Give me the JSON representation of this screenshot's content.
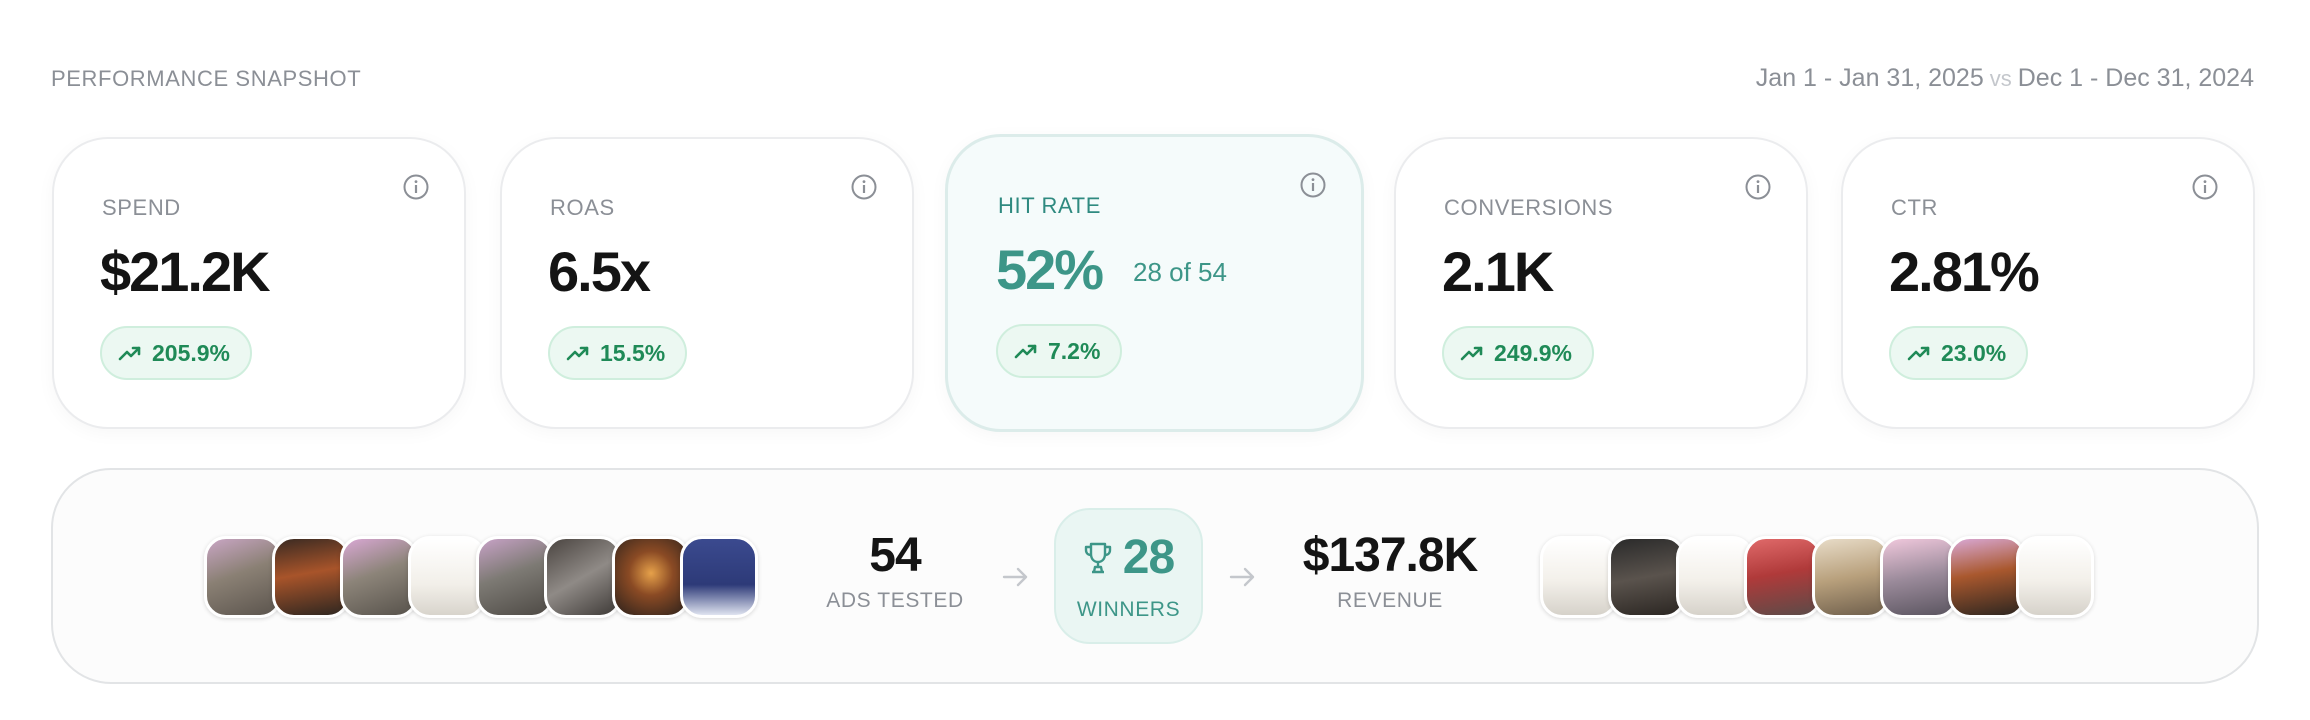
{
  "header": {
    "title": "PERFORMANCE SNAPSHOT",
    "current_range": "Jan 1 - Jan 31, 2025",
    "vs": "vs",
    "previous_range": "Dec 1 - Dec 31, 2024"
  },
  "cards": [
    {
      "label": "SPEND",
      "value": "$21.2K",
      "change": "205.9%",
      "trend": "up"
    },
    {
      "label": "ROAS",
      "value": "6.5x",
      "change": "15.5%",
      "trend": "up"
    },
    {
      "label": "HIT RATE",
      "value": "52%",
      "sub": "28 of 54",
      "change": "7.2%",
      "trend": "up"
    },
    {
      "label": "CONVERSIONS",
      "value": "2.1K",
      "change": "249.9%",
      "trend": "up"
    },
    {
      "label": "CTR",
      "value": "2.81%",
      "change": "23.0%",
      "trend": "up"
    }
  ],
  "funnel": {
    "ads_tested": {
      "value": "54",
      "label": "ADS TESTED"
    },
    "winners": {
      "value": "28",
      "label": "WINNERS"
    },
    "revenue": {
      "value": "$137.8K",
      "label": "REVENUE"
    }
  },
  "colors": {
    "accent": "#3d9688",
    "positive": "#1f8a57",
    "badge_bg": "#ecf8f2",
    "muted": "#8b8f96"
  },
  "icons": {
    "info": "info-icon",
    "trend": "trending-up-icon",
    "trophy": "trophy-icon",
    "arrow": "arrow-right-icon"
  }
}
